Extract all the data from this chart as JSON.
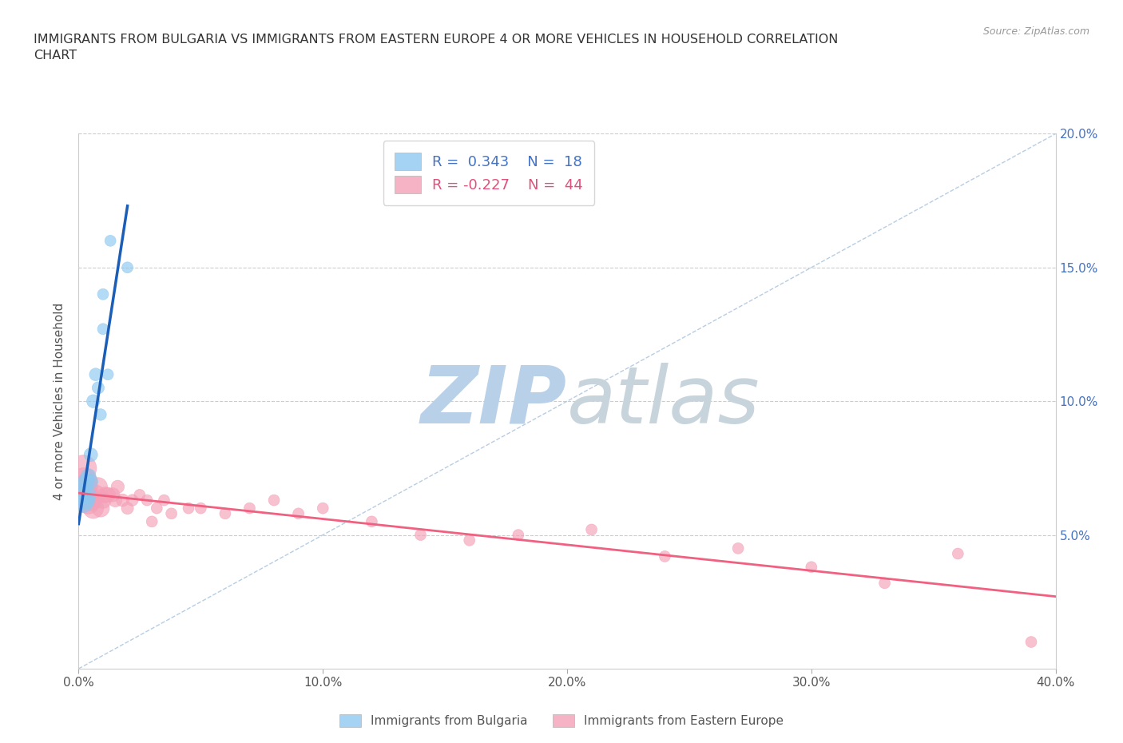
{
  "title": "IMMIGRANTS FROM BULGARIA VS IMMIGRANTS FROM EASTERN EUROPE 4 OR MORE VEHICLES IN HOUSEHOLD CORRELATION\nCHART",
  "source": "Source: ZipAtlas.com",
  "ylabel": "4 or more Vehicles in Household",
  "xlim": [
    0.0,
    0.4
  ],
  "ylim": [
    0.0,
    0.2
  ],
  "xtick_labels": [
    "0.0%",
    "10.0%",
    "20.0%",
    "30.0%",
    "40.0%"
  ],
  "xtick_vals": [
    0.0,
    0.1,
    0.2,
    0.3,
    0.4
  ],
  "right_ytick_labels": [
    "5.0%",
    "10.0%",
    "15.0%",
    "20.0%"
  ],
  "right_ytick_vals": [
    0.05,
    0.1,
    0.15,
    0.2
  ],
  "grid_ytick_vals": [
    0.05,
    0.1,
    0.15,
    0.2
  ],
  "bulgaria_color": "#8DC8F0",
  "eastern_europe_color": "#F4A0B8",
  "bulgaria_line_color": "#1A5EB8",
  "eastern_europe_line_color": "#F06080",
  "diagonal_color": "#B0C8E0",
  "watermark_color": "#D4E4F0",
  "R_bulgaria": 0.343,
  "N_bulgaria": 18,
  "R_eastern": -0.227,
  "N_eastern": 44,
  "bulgaria_x": [
    0.001,
    0.002,
    0.002,
    0.003,
    0.003,
    0.004,
    0.004,
    0.005,
    0.005,
    0.006,
    0.007,
    0.008,
    0.009,
    0.01,
    0.01,
    0.012,
    0.013,
    0.02
  ],
  "bulgaria_y": [
    0.065,
    0.062,
    0.068,
    0.063,
    0.07,
    0.065,
    0.072,
    0.07,
    0.08,
    0.1,
    0.11,
    0.105,
    0.095,
    0.127,
    0.14,
    0.11,
    0.16,
    0.15
  ],
  "eastern_europe_x": [
    0.001,
    0.002,
    0.002,
    0.003,
    0.003,
    0.004,
    0.005,
    0.006,
    0.007,
    0.008,
    0.009,
    0.01,
    0.011,
    0.012,
    0.014,
    0.015,
    0.016,
    0.018,
    0.02,
    0.022,
    0.025,
    0.028,
    0.03,
    0.032,
    0.035,
    0.038,
    0.045,
    0.05,
    0.06,
    0.07,
    0.08,
    0.09,
    0.1,
    0.12,
    0.14,
    0.16,
    0.18,
    0.21,
    0.24,
    0.27,
    0.3,
    0.33,
    0.36,
    0.39
  ],
  "eastern_europe_y": [
    0.065,
    0.07,
    0.075,
    0.065,
    0.068,
    0.062,
    0.063,
    0.06,
    0.065,
    0.068,
    0.06,
    0.063,
    0.065,
    0.065,
    0.065,
    0.063,
    0.068,
    0.063,
    0.06,
    0.063,
    0.065,
    0.063,
    0.055,
    0.06,
    0.063,
    0.058,
    0.06,
    0.06,
    0.058,
    0.06,
    0.063,
    0.058,
    0.06,
    0.055,
    0.05,
    0.048,
    0.05,
    0.052,
    0.042,
    0.045,
    0.038,
    0.032,
    0.043,
    0.01
  ],
  "bulgaria_sizes": [
    350,
    300,
    270,
    250,
    220,
    200,
    180,
    160,
    150,
    140,
    130,
    120,
    110,
    100,
    100,
    100,
    100,
    100
  ],
  "eastern_europe_sizes": [
    700,
    600,
    550,
    500,
    450,
    400,
    370,
    340,
    310,
    280,
    250,
    220,
    200,
    180,
    160,
    150,
    140,
    130,
    120,
    110,
    100,
    100,
    100,
    100,
    100,
    100,
    100,
    100,
    100,
    100,
    100,
    100,
    100,
    100,
    100,
    100,
    100,
    100,
    100,
    100,
    100,
    100,
    100,
    100
  ]
}
